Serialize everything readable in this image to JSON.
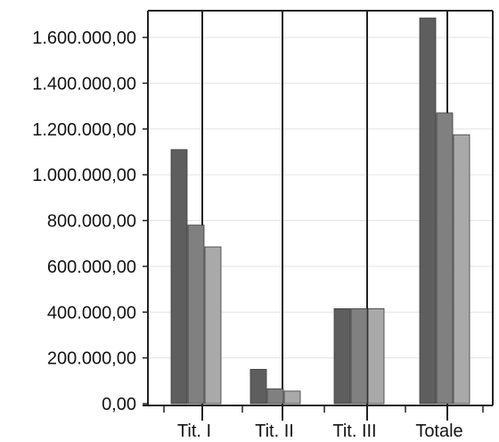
{
  "chart_data": {
    "type": "bar",
    "title": "",
    "xlabel": "",
    "ylabel": "",
    "categories": [
      "Tit. I",
      "Tit. II",
      "Tit. III",
      "Totale"
    ],
    "series": [
      {
        "values": [
          1110000,
          150000,
          415000,
          1685000
        ]
      },
      {
        "values": [
          780000,
          65000,
          415000,
          1270000
        ]
      },
      {
        "values": [
          685000,
          55000,
          415000,
          1175000
        ]
      }
    ],
    "ylim": [
      0,
      1700000
    ],
    "yticks": [
      0,
      200000,
      400000,
      600000,
      800000,
      1000000,
      1200000,
      1400000,
      1600000
    ],
    "ytick_labels": [
      "0,00",
      "200.000,00",
      "400.000,00",
      "600.000,00",
      "800.000,00",
      "1.000.000,00",
      "1.200.000,00",
      "1.400.000,00",
      "1.600.000,00"
    ],
    "grid": true,
    "legend": "none",
    "colors": [
      "#5e5e5e",
      "#808080",
      "#a9a9a9"
    ]
  }
}
